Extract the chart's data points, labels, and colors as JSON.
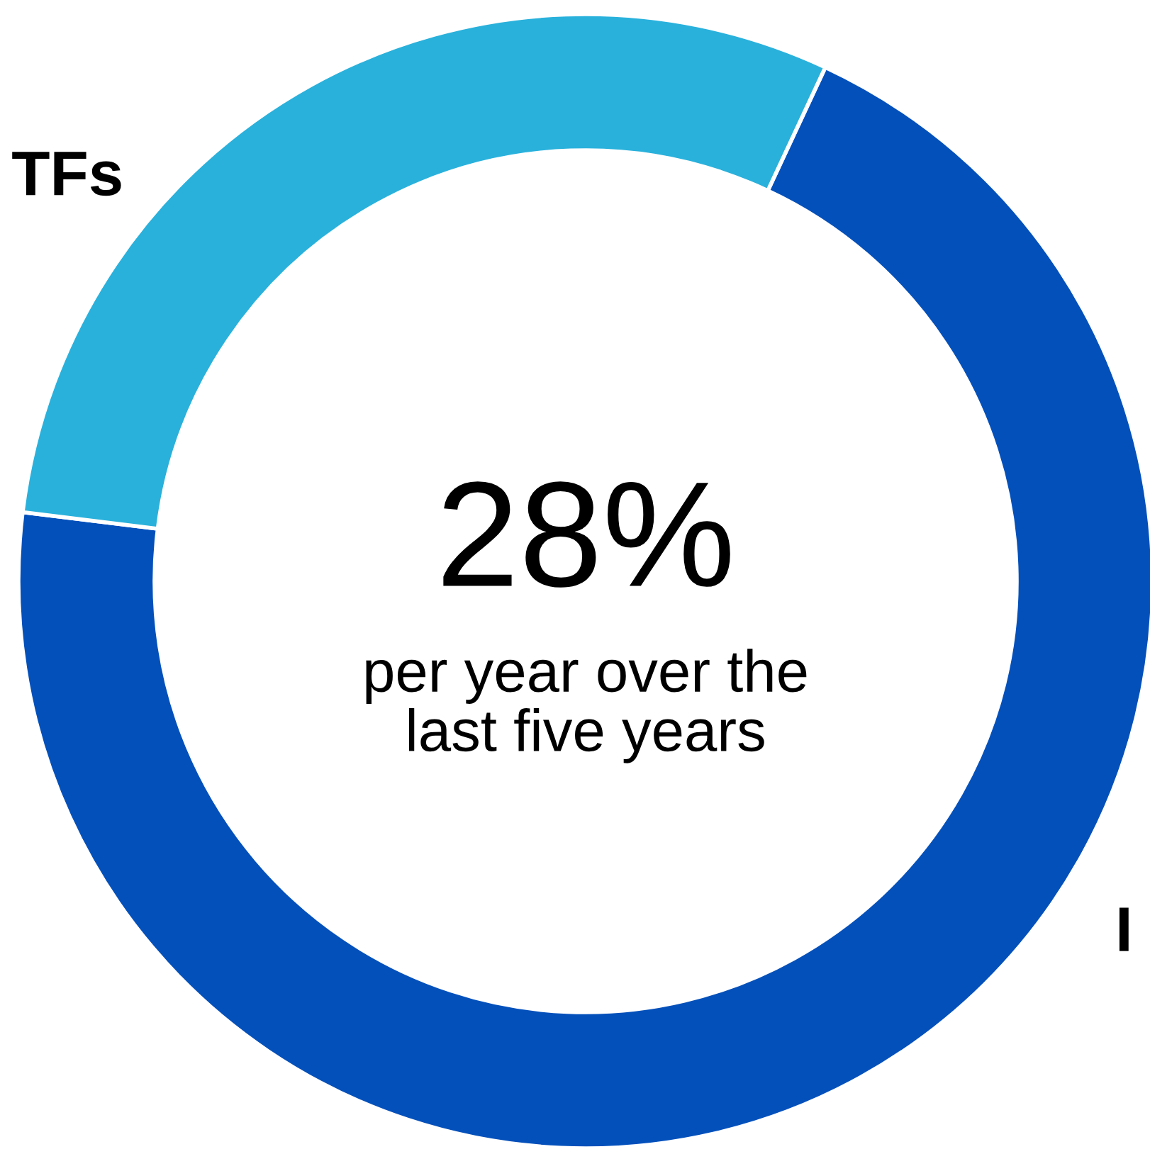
{
  "chart_data": {
    "type": "donut",
    "categories": [
      "I",
      "TFs"
    ],
    "values": [
      70,
      30
    ],
    "colors": [
      "#0350bb",
      "#29b1dc"
    ],
    "annotations": [
      "28%",
      "per year over the\nlast five years"
    ]
  }
}
